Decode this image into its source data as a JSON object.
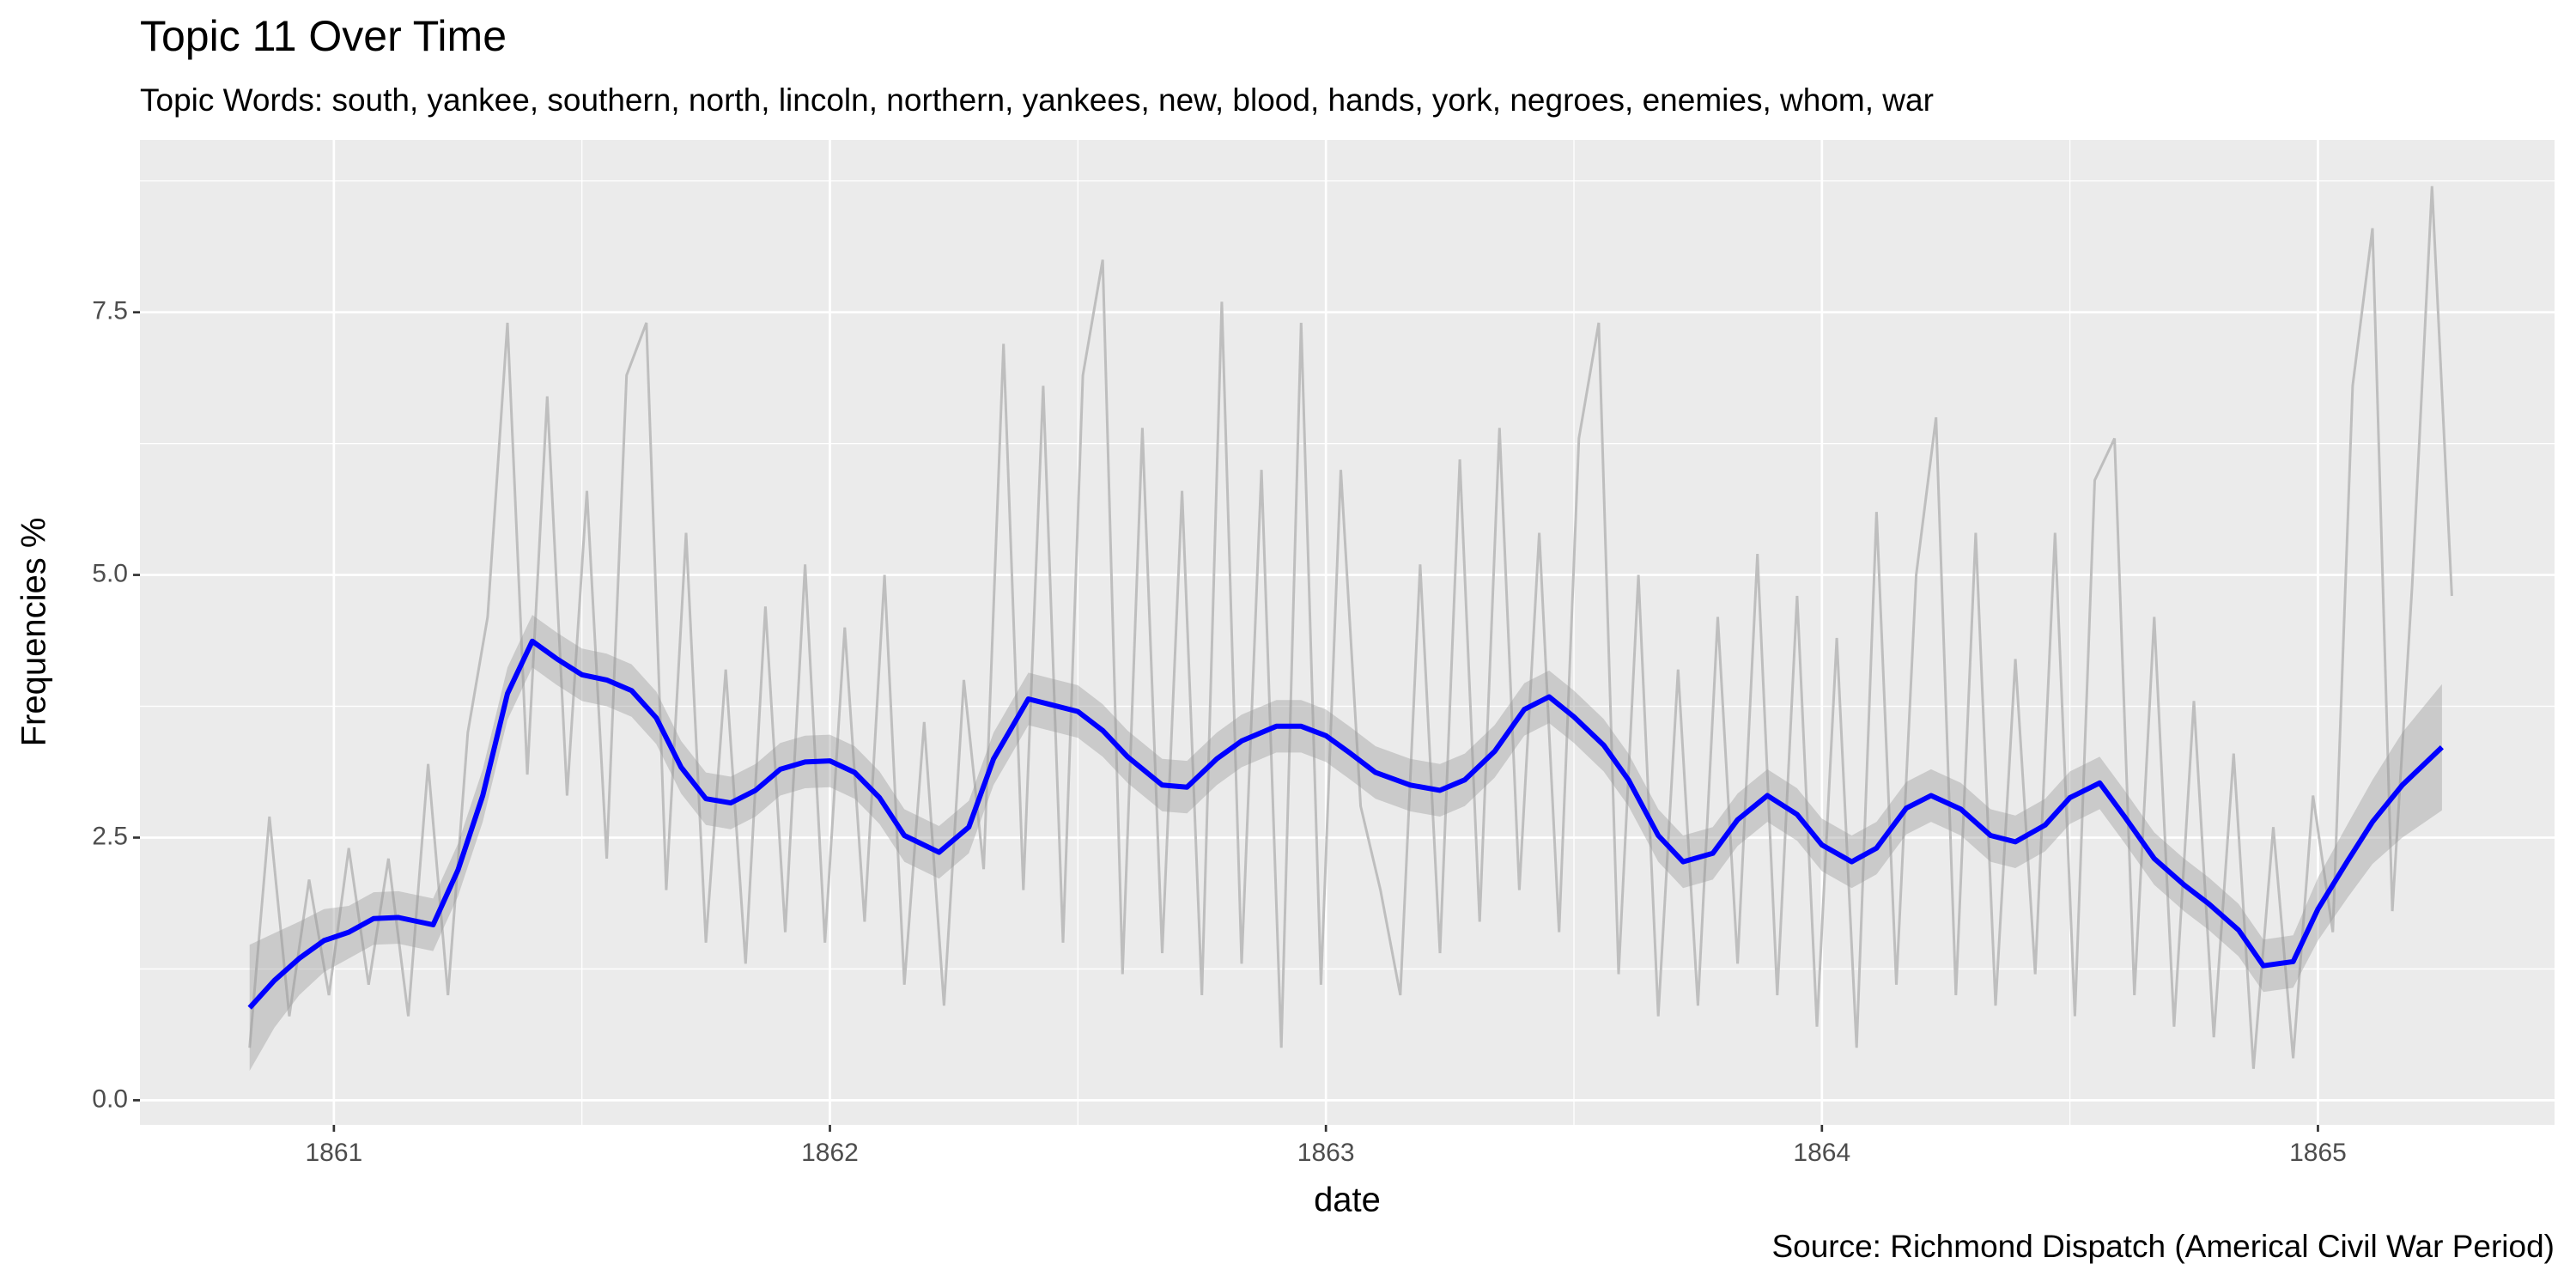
{
  "chart_data": {
    "type": "line",
    "title": "Topic 11 Over Time",
    "subtitle": "Topic Words: south, yankee, southern, north, lincoln, northern, yankees, new, blood, hands, york, negroes, enemies, whom, war",
    "xlabel": "date",
    "ylabel": "Frequencies %",
    "caption": "Source: Richmond Dispatch (Americal Civil War Period)",
    "color": "#bebebe",
    "grid": true,
    "xlim": [
      1860.609,
      1865.477
    ],
    "xticks": [
      1861,
      1862,
      1863,
      1864,
      1865
    ],
    "ylim": [
      -0.234,
      9.14
    ],
    "yticks": [
      {
        "value": 0,
        "label": "0.0"
      },
      2.5,
      {
        "value": 5,
        "label": "5.0"
      },
      7.5
    ],
    "x": [
      1860.83,
      1860.87,
      1860.91,
      1860.95,
      1860.99,
      1861.03,
      1861.07,
      1861.11,
      1861.15,
      1861.19,
      1861.23,
      1861.27,
      1861.31,
      1861.35,
      1861.39,
      1861.43,
      1861.47,
      1861.51,
      1861.55,
      1861.59,
      1861.63,
      1861.67,
      1861.71,
      1861.75,
      1861.79,
      1861.83,
      1861.87,
      1861.91,
      1861.95,
      1861.99,
      1862.03,
      1862.07,
      1862.11,
      1862.15,
      1862.19,
      1862.23,
      1862.27,
      1862.31,
      1862.35,
      1862.39,
      1862.43,
      1862.47,
      1862.51,
      1862.55,
      1862.59,
      1862.63,
      1862.67,
      1862.71,
      1862.75,
      1862.79,
      1862.83,
      1862.87,
      1862.91,
      1862.95,
      1862.99,
      1863.03,
      1863.07,
      1863.11,
      1863.15,
      1863.19,
      1863.23,
      1863.27,
      1863.31,
      1863.35,
      1863.39,
      1863.43,
      1863.47,
      1863.51,
      1863.55,
      1863.59,
      1863.63,
      1863.67,
      1863.71,
      1863.75,
      1863.79,
      1863.83,
      1863.87,
      1863.91,
      1863.95,
      1863.99,
      1864.03,
      1864.07,
      1864.11,
      1864.15,
      1864.19,
      1864.23,
      1864.27,
      1864.31,
      1864.35,
      1864.39,
      1864.43,
      1864.47,
      1864.51,
      1864.55,
      1864.59,
      1864.63,
      1864.67,
      1864.71,
      1864.75,
      1864.79,
      1864.83,
      1864.87,
      1864.91,
      1864.95,
      1864.99,
      1865.03,
      1865.07,
      1865.11,
      1865.15,
      1865.19,
      1865.23,
      1865.27
    ],
    "values": [
      0.5,
      2.7,
      0.8,
      2.1,
      1.0,
      2.4,
      1.1,
      2.3,
      0.8,
      3.2,
      1.0,
      3.5,
      4.6,
      7.4,
      3.1,
      6.7,
      2.9,
      5.8,
      2.3,
      6.9,
      7.4,
      2.0,
      5.4,
      1.5,
      4.1,
      1.3,
      4.7,
      1.6,
      5.1,
      1.5,
      4.5,
      1.7,
      5.0,
      1.1,
      3.6,
      0.9,
      4.0,
      2.2,
      7.2,
      2.0,
      6.8,
      1.5,
      6.9,
      8.0,
      1.2,
      6.4,
      1.4,
      5.8,
      1.0,
      7.6,
      1.3,
      6.0,
      0.5,
      7.4,
      1.1,
      6.0,
      2.8,
      2.0,
      1.0,
      5.1,
      1.4,
      6.1,
      1.7,
      6.4,
      2.0,
      5.4,
      1.6,
      6.3,
      7.4,
      1.2,
      5.0,
      0.8,
      4.1,
      0.9,
      4.6,
      1.3,
      5.2,
      1.0,
      4.8,
      0.7,
      4.4,
      0.5,
      5.6,
      1.1,
      5.0,
      6.5,
      1.0,
      5.4,
      0.9,
      4.2,
      1.2,
      5.4,
      0.8,
      5.9,
      6.3,
      1.0,
      4.6,
      0.7,
      3.8,
      0.6,
      3.3,
      0.3,
      2.6,
      0.4,
      2.9,
      1.6,
      6.8,
      8.3,
      1.8,
      4.9,
      8.7,
      4.8
    ],
    "smooth": {
      "color": "#0000ff",
      "band_color": "#999999",
      "x": [
        1860.83,
        1860.88,
        1860.93,
        1860.98,
        1861.03,
        1861.08,
        1861.13,
        1861.2,
        1861.25,
        1861.3,
        1861.35,
        1861.4,
        1861.45,
        1861.5,
        1861.55,
        1861.6,
        1861.65,
        1861.7,
        1861.75,
        1861.8,
        1861.85,
        1861.9,
        1861.95,
        1862.0,
        1862.05,
        1862.1,
        1862.15,
        1862.22,
        1862.28,
        1862.33,
        1862.4,
        1862.45,
        1862.5,
        1862.55,
        1862.6,
        1862.67,
        1862.72,
        1862.78,
        1862.83,
        1862.9,
        1862.95,
        1863.0,
        1863.05,
        1863.1,
        1863.17,
        1863.23,
        1863.28,
        1863.34,
        1863.4,
        1863.45,
        1863.5,
        1863.56,
        1863.61,
        1863.67,
        1863.72,
        1863.78,
        1863.83,
        1863.89,
        1863.95,
        1864.0,
        1864.06,
        1864.11,
        1864.17,
        1864.22,
        1864.28,
        1864.34,
        1864.39,
        1864.45,
        1864.5,
        1864.56,
        1864.61,
        1864.67,
        1864.73,
        1864.78,
        1864.84,
        1864.89,
        1864.95,
        1865.0,
        1865.06,
        1865.11,
        1865.17,
        1865.25
      ],
      "values": [
        0.88,
        1.14,
        1.35,
        1.52,
        1.6,
        1.73,
        1.74,
        1.67,
        2.19,
        2.9,
        3.87,
        4.37,
        4.2,
        4.05,
        4.0,
        3.9,
        3.64,
        3.17,
        2.87,
        2.83,
        2.95,
        3.15,
        3.22,
        3.23,
        3.12,
        2.88,
        2.52,
        2.36,
        2.6,
        3.25,
        3.82,
        3.76,
        3.7,
        3.52,
        3.27,
        3.0,
        2.98,
        3.25,
        3.42,
        3.56,
        3.56,
        3.47,
        3.3,
        3.12,
        3.0,
        2.95,
        3.05,
        3.32,
        3.72,
        3.84,
        3.65,
        3.38,
        3.05,
        2.52,
        2.27,
        2.35,
        2.67,
        2.9,
        2.72,
        2.43,
        2.27,
        2.4,
        2.78,
        2.9,
        2.77,
        2.52,
        2.46,
        2.62,
        2.88,
        3.02,
        2.7,
        2.3,
        2.05,
        1.87,
        1.62,
        1.28,
        1.32,
        1.82,
        2.28,
        2.65,
        3.0,
        3.36
      ],
      "lower": [
        0.28,
        0.69,
        1.0,
        1.22,
        1.35,
        1.48,
        1.49,
        1.42,
        1.94,
        2.65,
        3.62,
        4.12,
        3.95,
        3.8,
        3.75,
        3.65,
        3.39,
        2.92,
        2.62,
        2.58,
        2.7,
        2.9,
        2.97,
        2.98,
        2.87,
        2.63,
        2.27,
        2.11,
        2.35,
        3.0,
        3.57,
        3.51,
        3.45,
        3.27,
        3.02,
        2.75,
        2.73,
        3.0,
        3.17,
        3.31,
        3.31,
        3.22,
        3.05,
        2.87,
        2.75,
        2.7,
        2.8,
        3.07,
        3.47,
        3.59,
        3.4,
        3.13,
        2.8,
        2.27,
        2.02,
        2.1,
        2.42,
        2.65,
        2.47,
        2.18,
        2.02,
        2.15,
        2.53,
        2.65,
        2.52,
        2.27,
        2.21,
        2.37,
        2.63,
        2.77,
        2.45,
        2.05,
        1.8,
        1.62,
        1.37,
        1.03,
        1.07,
        1.52,
        1.93,
        2.25,
        2.5,
        2.76
      ],
      "upper": [
        1.48,
        1.59,
        1.7,
        1.82,
        1.85,
        1.98,
        1.99,
        1.92,
        2.44,
        3.15,
        4.12,
        4.62,
        4.45,
        4.3,
        4.25,
        4.15,
        3.89,
        3.42,
        3.12,
        3.08,
        3.2,
        3.4,
        3.47,
        3.48,
        3.37,
        3.13,
        2.77,
        2.61,
        2.85,
        3.5,
        4.07,
        4.01,
        3.95,
        3.77,
        3.52,
        3.25,
        3.23,
        3.5,
        3.67,
        3.81,
        3.81,
        3.72,
        3.55,
        3.37,
        3.25,
        3.2,
        3.3,
        3.57,
        3.97,
        4.09,
        3.9,
        3.63,
        3.3,
        2.77,
        2.52,
        2.6,
        2.92,
        3.15,
        2.97,
        2.68,
        2.52,
        2.65,
        3.03,
        3.15,
        3.02,
        2.77,
        2.71,
        2.87,
        3.13,
        3.27,
        2.95,
        2.55,
        2.3,
        2.12,
        1.87,
        1.53,
        1.57,
        2.12,
        2.63,
        3.05,
        3.5,
        3.96
      ]
    }
  }
}
